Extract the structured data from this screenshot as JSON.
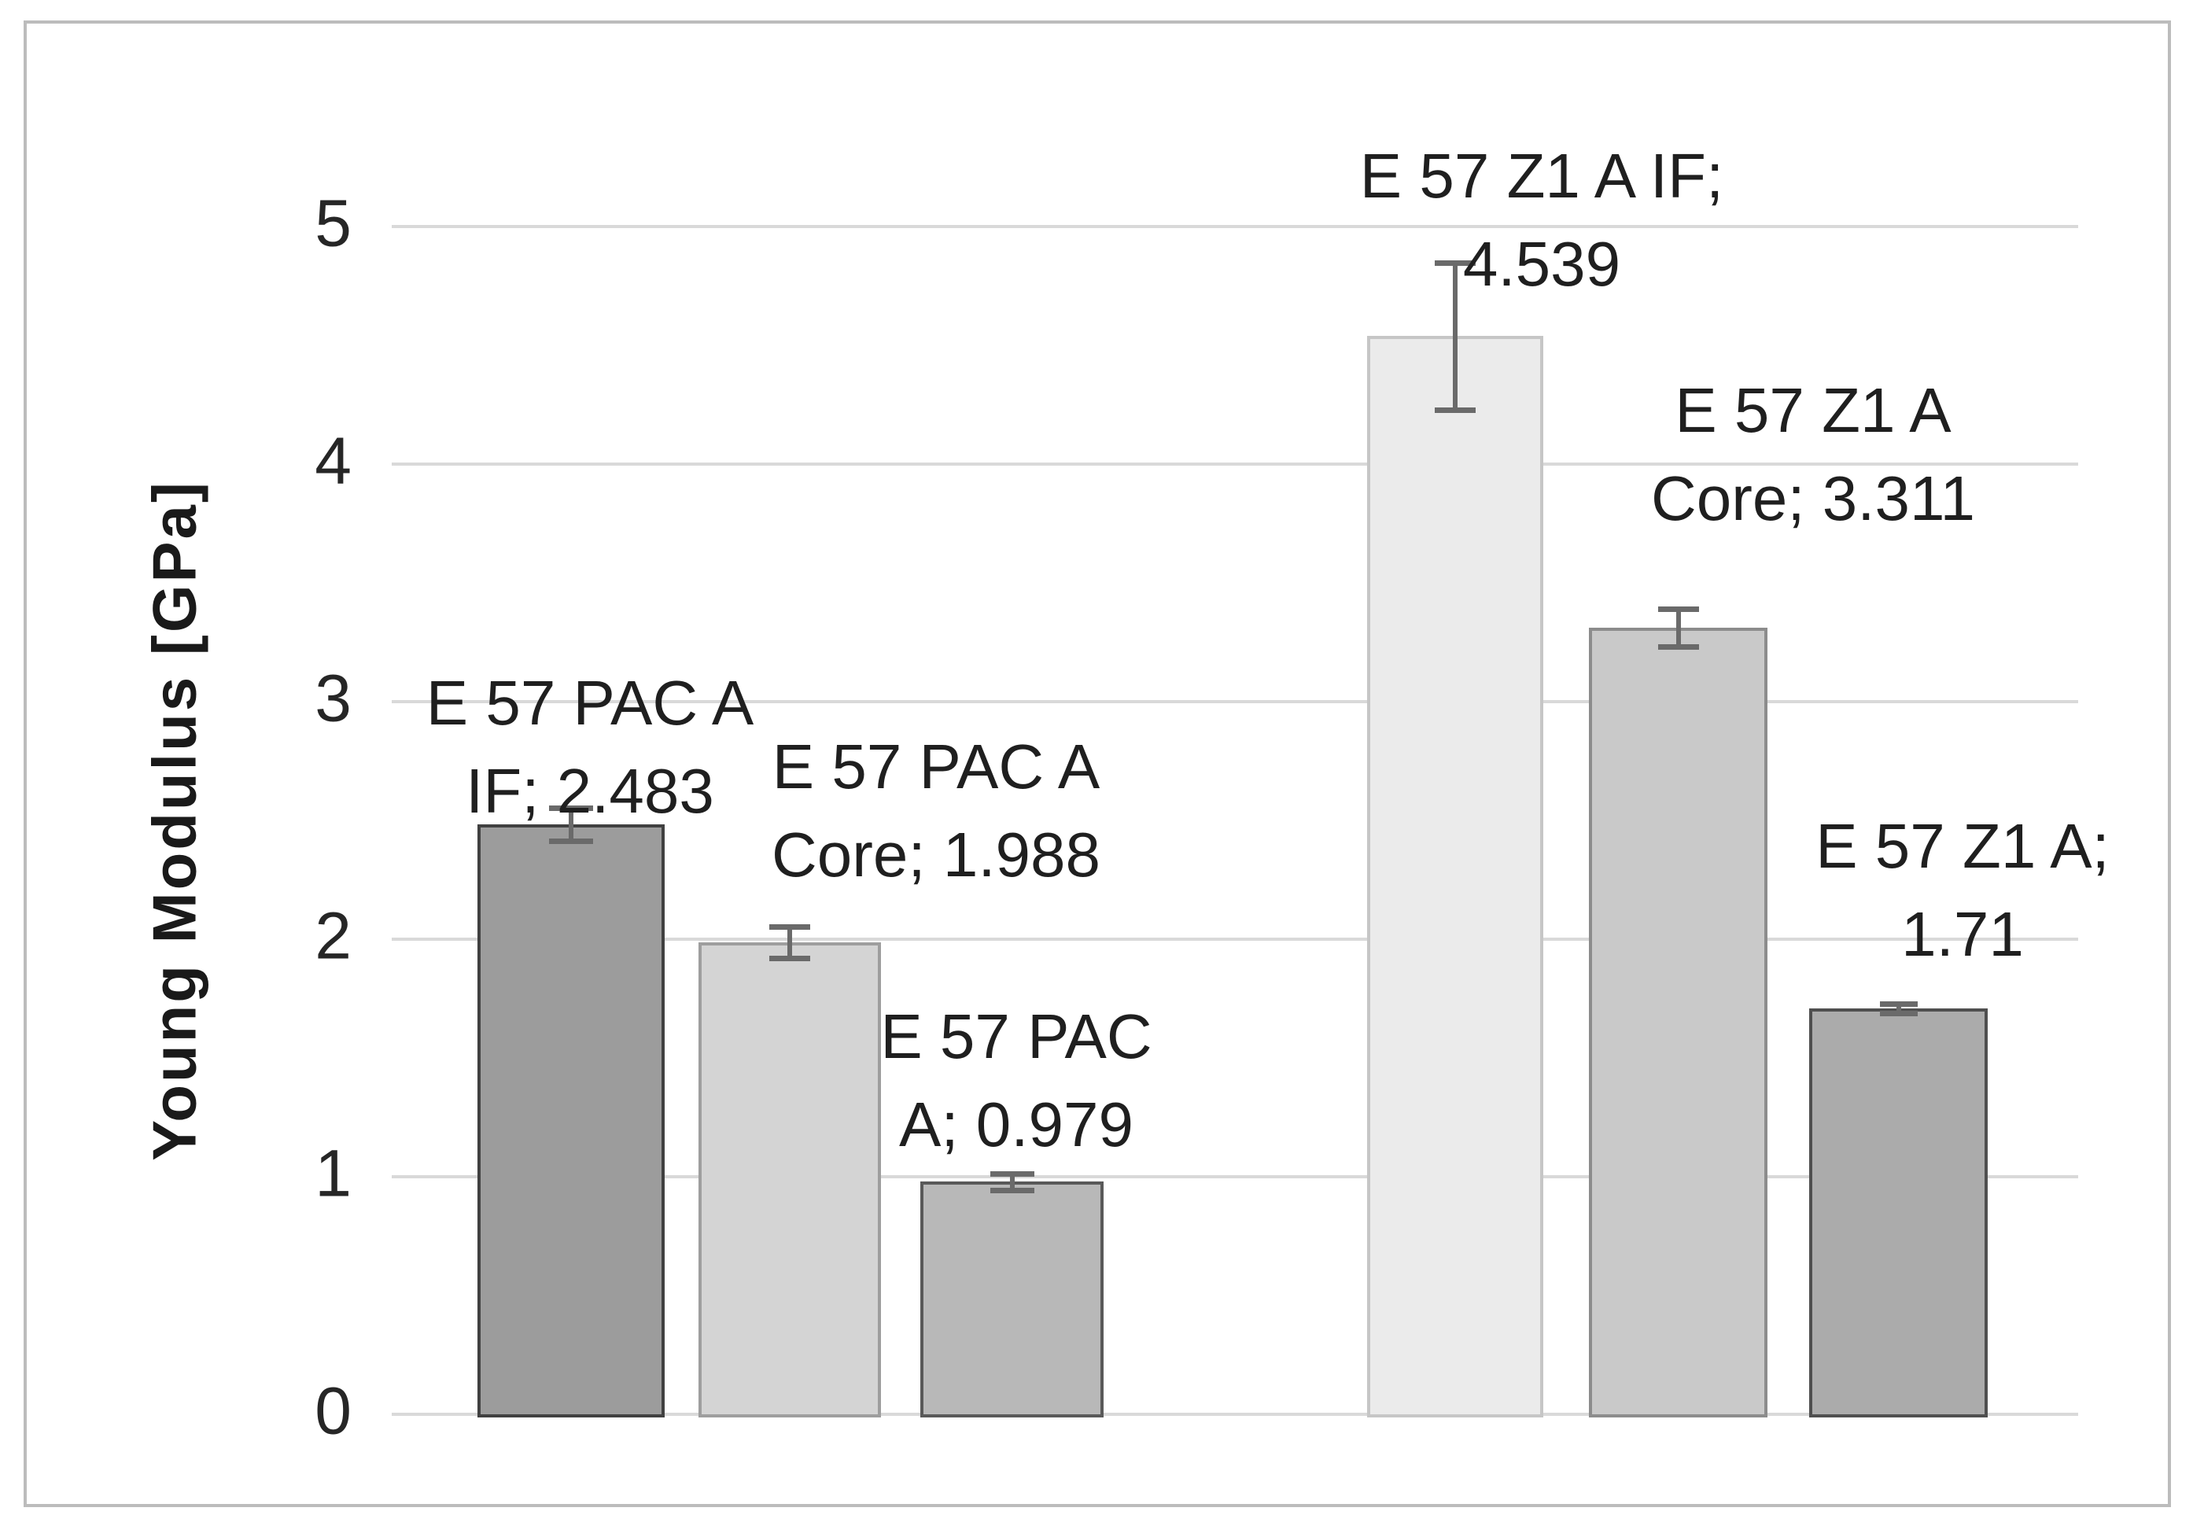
{
  "chart_data": {
    "type": "bar",
    "title": "",
    "xlabel": "",
    "ylabel": "Young Modulus [GPa]",
    "ylim": [
      0,
      5
    ],
    "yticks": [
      0,
      1,
      2,
      3,
      4,
      5
    ],
    "grid": true,
    "legend": false,
    "categories": [
      "E 57 PAC A IF",
      "E 57 PAC A Core",
      "E 57 PAC A",
      "E 57 Z1 A IF",
      "E 57 Z1 A Core",
      "E 57 Z1 A"
    ],
    "values": [
      2.483,
      1.988,
      0.979,
      4.539,
      3.311,
      1.71
    ],
    "errors": [
      0.07,
      0.066,
      0.035,
      0.31,
      0.08,
      0.02
    ],
    "data_labels": [
      [
        "E 57 PAC A",
        "IF; 2.483"
      ],
      [
        "E 57 PAC A",
        "Core; 1.988"
      ],
      [
        "E 57 PAC",
        "A; 0.979"
      ],
      [
        "E 57 Z1 A IF;",
        "4.539"
      ],
      [
        "E 57 Z1 A",
        "Core; 3.311"
      ],
      [
        "E 57 Z1 A;",
        "1.71"
      ]
    ],
    "bar_fills": [
      "#9c9c9c",
      "#d4d4d4",
      "#b8b8b8",
      "#ebebeb",
      "#c9c9c9",
      "#ababab"
    ],
    "bar_borders": [
      "#404040",
      "#9e9e9e",
      "#595959",
      "#c6c6c6",
      "#8c8c8c",
      "#4f4f4f"
    ],
    "error_bar_color": "#6a6a6a",
    "gridline_color": "#d9d9d9",
    "frame_border_color": "#bcbcbc",
    "text_color": "#1f1f1f"
  }
}
